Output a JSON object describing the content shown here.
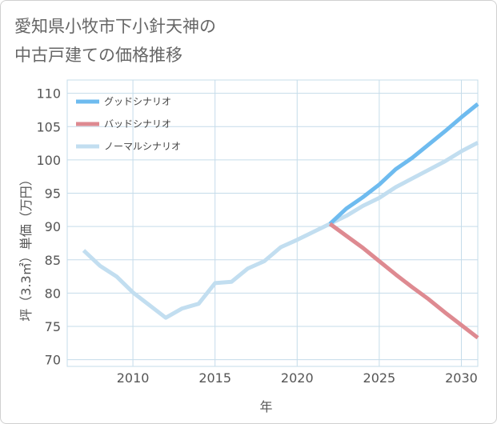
{
  "title": {
    "line1": "愛知県小牧市下小針天神の",
    "line2": "中古戸建ての価格推移"
  },
  "chart_data": {
    "type": "line",
    "title": "愛知県小牧市下小針天神の中古戸建ての価格推移",
    "xlabel": "年",
    "ylabel": "坪（3.3㎡）単価（万円）",
    "xlim": [
      2006,
      2031
    ],
    "ylim": [
      69,
      112
    ],
    "xticks": [
      2010,
      2015,
      2020,
      2025,
      2030
    ],
    "yticks": [
      70,
      75,
      80,
      85,
      90,
      95,
      100,
      105,
      110
    ],
    "grid": true,
    "legend_position": "top-left",
    "series": [
      {
        "name": "グッドシナリオ",
        "color": "#6ebbef",
        "x": [
          2022,
          2023,
          2024,
          2025,
          2026,
          2027,
          2028,
          2029,
          2030,
          2031
        ],
        "y": [
          90.4,
          92.7,
          94.4,
          96.3,
          98.6,
          100.3,
          102.3,
          104.3,
          106.4,
          108.4
        ]
      },
      {
        "name": "バッドシナリオ",
        "color": "#de8a91",
        "x": [
          2022,
          2023,
          2024,
          2025,
          2026,
          2027,
          2028,
          2029,
          2030,
          2031
        ],
        "y": [
          90.4,
          88.6,
          86.8,
          84.8,
          82.8,
          80.9,
          79.1,
          77.1,
          75.2,
          73.3
        ]
      },
      {
        "name": "ノーマルシナリオ",
        "color": "#c2def0",
        "x": [
          2007,
          2008,
          2009,
          2010,
          2011,
          2012,
          2013,
          2014,
          2015,
          2016,
          2017,
          2018,
          2019,
          2020,
          2021,
          2022,
          2023,
          2024,
          2025,
          2026,
          2027,
          2028,
          2029,
          2030,
          2031
        ],
        "y": [
          86.4,
          84.1,
          82.5,
          80.1,
          78.2,
          76.3,
          77.7,
          78.4,
          81.5,
          81.7,
          83.7,
          84.8,
          86.9,
          88.0,
          89.2,
          90.4,
          91.6,
          93.1,
          94.3,
          95.9,
          97.2,
          98.5,
          99.8,
          101.3,
          102.6
        ]
      }
    ]
  }
}
